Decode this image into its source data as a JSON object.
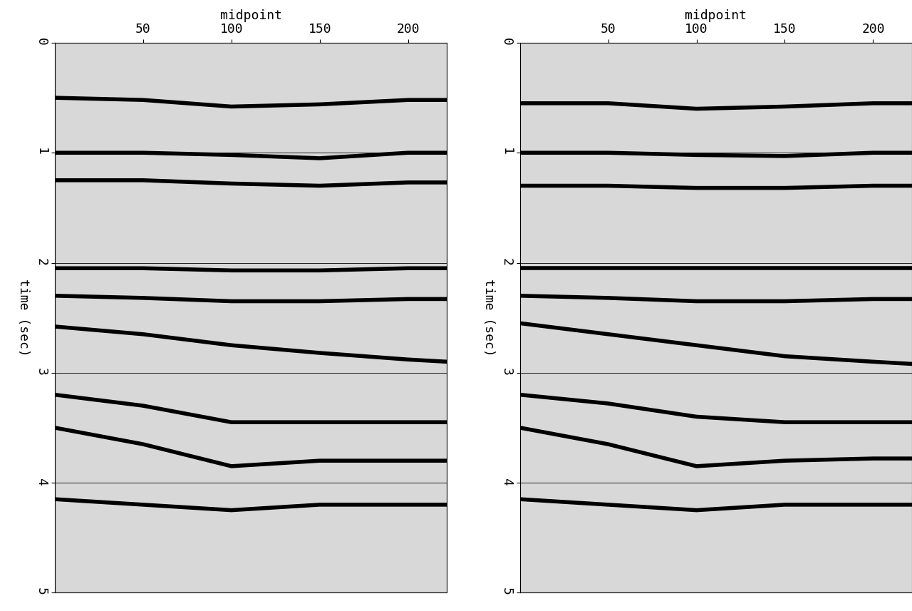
{
  "chart_data": [
    {
      "type": "line",
      "x_label": "midpoint",
      "y_label": "time (sec)",
      "xlim": [
        0,
        222
      ],
      "ylim": [
        5,
        0
      ],
      "xticks": [
        50,
        100,
        150,
        200
      ],
      "yticks": [
        0,
        1,
        2,
        3,
        4,
        5
      ],
      "grid": "y",
      "color": "#000000",
      "x": [
        0,
        50,
        100,
        150,
        200,
        222
      ],
      "series": [
        {
          "values": [
            0.5,
            0.52,
            0.58,
            0.56,
            0.52,
            0.52
          ]
        },
        {
          "values": [
            1.0,
            1.0,
            1.02,
            1.05,
            1.0,
            1.0
          ]
        },
        {
          "values": [
            1.25,
            1.25,
            1.28,
            1.3,
            1.27,
            1.27
          ]
        },
        {
          "values": [
            2.05,
            2.05,
            2.07,
            2.07,
            2.05,
            2.05
          ]
        },
        {
          "values": [
            2.3,
            2.32,
            2.35,
            2.35,
            2.33,
            2.33
          ]
        },
        {
          "values": [
            2.58,
            2.65,
            2.75,
            2.82,
            2.88,
            2.9
          ]
        },
        {
          "values": [
            3.2,
            3.3,
            3.45,
            3.45,
            3.45,
            3.45
          ]
        },
        {
          "values": [
            3.5,
            3.65,
            3.85,
            3.8,
            3.8,
            3.8
          ]
        },
        {
          "values": [
            4.15,
            4.2,
            4.25,
            4.2,
            4.2,
            4.2
          ]
        }
      ]
    },
    {
      "type": "line",
      "x_label": "midpoint",
      "y_label": "time (sec)",
      "xlim": [
        0,
        222
      ],
      "ylim": [
        5,
        0
      ],
      "xticks": [
        50,
        100,
        150,
        200
      ],
      "yticks": [
        0,
        1,
        2,
        3,
        4,
        5
      ],
      "grid": "y",
      "color": "#000000",
      "x": [
        0,
        50,
        100,
        150,
        200,
        222
      ],
      "series": [
        {
          "values": [
            0.55,
            0.55,
            0.6,
            0.58,
            0.55,
            0.55
          ]
        },
        {
          "values": [
            1.0,
            1.0,
            1.02,
            1.03,
            1.0,
            1.0
          ]
        },
        {
          "values": [
            1.3,
            1.3,
            1.32,
            1.32,
            1.3,
            1.3
          ]
        },
        {
          "values": [
            2.05,
            2.05,
            2.05,
            2.05,
            2.05,
            2.05
          ]
        },
        {
          "values": [
            2.3,
            2.32,
            2.35,
            2.35,
            2.33,
            2.33
          ]
        },
        {
          "values": [
            2.55,
            2.65,
            2.75,
            2.85,
            2.9,
            2.92
          ]
        },
        {
          "values": [
            3.2,
            3.28,
            3.4,
            3.45,
            3.45,
            3.45
          ]
        },
        {
          "values": [
            3.5,
            3.65,
            3.85,
            3.8,
            3.78,
            3.78
          ]
        },
        {
          "values": [
            4.15,
            4.2,
            4.25,
            4.2,
            4.2,
            4.2
          ]
        }
      ]
    }
  ]
}
